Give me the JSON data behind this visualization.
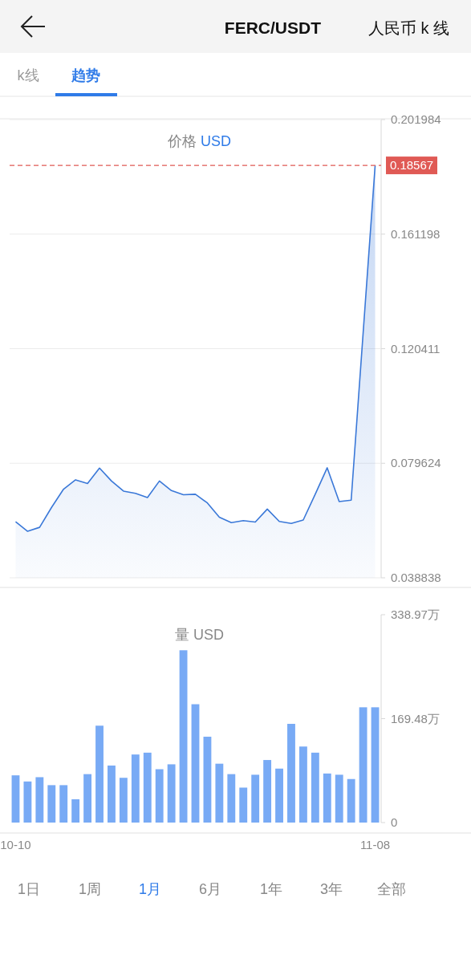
{
  "chart_data": [
    {
      "type": "area",
      "title": "价格",
      "subtitle": "USD",
      "annotations": [
        "FERC/USDT",
        "人民币 k 线",
        "k线",
        "趋势"
      ],
      "categories": [
        null,
        null,
        null,
        null,
        null,
        null,
        null,
        null,
        null,
        null,
        null,
        null,
        null,
        null,
        null,
        null,
        null,
        null,
        null,
        null,
        null,
        null,
        null,
        null,
        null,
        null,
        null,
        null,
        null,
        null,
        null
      ],
      "series": [
        {
          "color": "#3a78d8",
          "values": [
            0.0588,
            0.0554,
            0.0568,
            0.0639,
            0.0704,
            0.0737,
            0.0724,
            0.0779,
            0.0733,
            0.0697,
            0.0689,
            0.0674,
            0.0733,
            0.0699,
            0.0684,
            0.0686,
            0.0655,
            0.0604,
            0.0585,
            0.0592,
            0.0587,
            0.0633,
            0.0589,
            0.0582,
            0.0594,
            0.0686,
            0.078,
            0.066,
            0.0665,
            null,
            0.18567
          ]
        }
      ],
      "ylim": [
        0.038838,
        0.201984
      ],
      "yticks": [
        0.038838,
        0.079624,
        0.120411,
        0.161198,
        0.201984
      ],
      "ref_lines": [
        {
          "axis": "y",
          "value": 0.18567,
          "label": "0.18567",
          "color": "#e05a55",
          "line_style": "dashed"
        }
      ],
      "grid": "y",
      "tick_labels": "y"
    },
    {
      "type": "bar",
      "title": "量",
      "subtitle": "USD",
      "annotations": [
        "1日",
        "1周",
        "1月",
        "6月",
        "1年",
        "3年",
        "全部"
      ],
      "categories": [
        "10-10",
        null,
        null,
        null,
        null,
        null,
        null,
        null,
        null,
        null,
        null,
        null,
        null,
        null,
        null,
        null,
        null,
        null,
        null,
        null,
        null,
        null,
        null,
        null,
        null,
        null,
        null,
        null,
        null,
        null,
        "11-08"
      ],
      "series": [
        {
          "color": "#78aaf5",
          "values": [
            77,
            67,
            74,
            61,
            61,
            38,
            79,
            158,
            93,
            73,
            111,
            114,
            87,
            95,
            281,
            193,
            140,
            96,
            79,
            57,
            78,
            102,
            88,
            161,
            124,
            114,
            80,
            78,
            71,
            188,
            188
          ]
        }
      ],
      "ylim": [
        0,
        338.97
      ],
      "yticks": [
        0,
        {
          "value": 169.48,
          "label": "169.48万"
        },
        {
          "value": 338.97,
          "label": "338.97万"
        }
      ]
    }
  ]
}
